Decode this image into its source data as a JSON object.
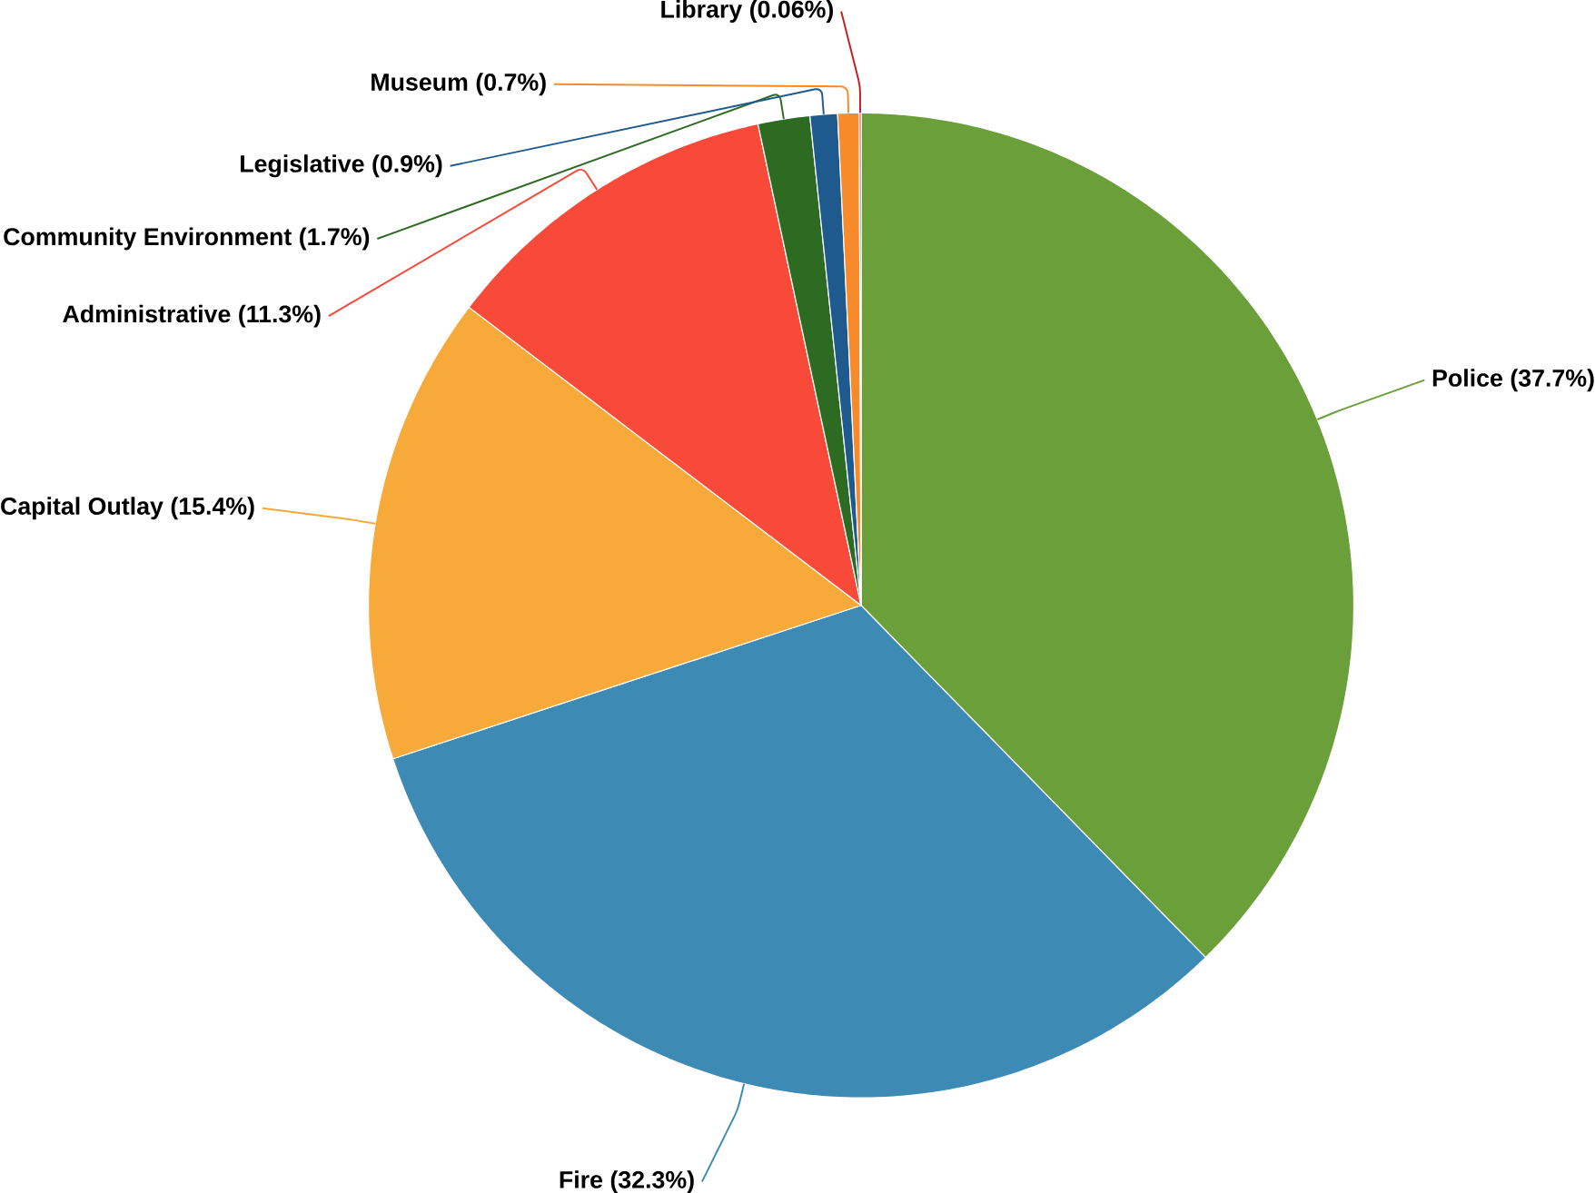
{
  "chart_data": {
    "type": "pie",
    "categories": [
      "Police",
      "Fire",
      "Capital Outlay",
      "Administrative",
      "Community Environment",
      "Legislative",
      "Museum",
      "Library"
    ],
    "values": [
      37.7,
      32.3,
      15.4,
      11.3,
      1.7,
      0.9,
      0.7,
      0.06
    ],
    "value_labels": [
      "(37.7%)",
      "(32.3%)",
      "(15.4%)",
      "(11.3%)",
      "(1.7%)",
      "(0.9%)",
      "(0.7%)",
      "(0.06%)"
    ],
    "colors": [
      "#6a9f3a",
      "#3d8ab5",
      "#f7a93a",
      "#f94a39",
      "#2e6b22",
      "#1f5a8f",
      "#f78a2a",
      "#c42020"
    ]
  }
}
